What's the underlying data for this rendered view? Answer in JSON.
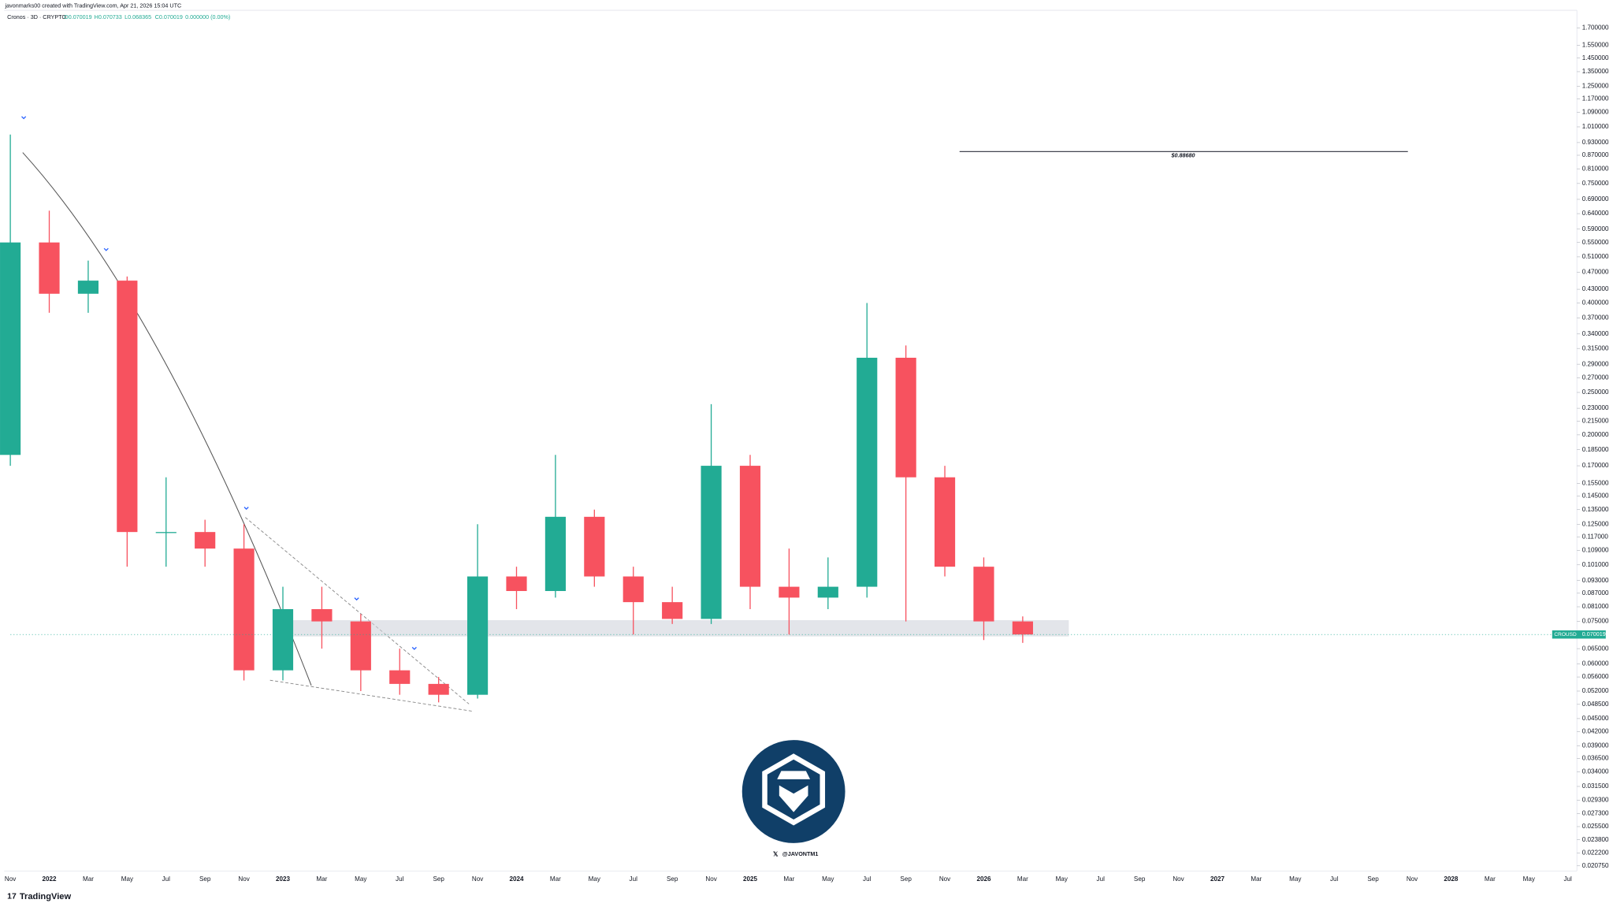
{
  "header": "javonmarks00 created with TradingView.com, Apr 21, 2026 15:04 UTC",
  "brand": "TradingView",
  "chart_data": {
    "type": "candlestick",
    "title": "Cronos · 3D · CRYPTO",
    "legend_ohlc": [
      "O0.070019",
      "H0.070733",
      "L0.068365",
      "C0.070019",
      "0.000000 (0.00%)"
    ],
    "categories": [
      "Nov",
      "2022",
      "Mar",
      "May",
      "Jul",
      "Sep",
      "Nov",
      "2023",
      "Mar",
      "May",
      "Jul",
      "Sep",
      "Nov",
      "2024",
      "Mar",
      "May",
      "Jul",
      "Sep",
      "Nov",
      "2025",
      "Mar",
      "May",
      "Jul",
      "Sep",
      "Nov",
      "2026",
      "Mar",
      "May",
      "Jul",
      "Sep",
      "Nov",
      "2027",
      "Mar",
      "May",
      "Jul",
      "Sep",
      "Nov",
      "2028",
      "Mar",
      "May",
      "Jul"
    ],
    "series": [
      {
        "name": "CROUSD",
        "up_color": "#22ab94",
        "down_color": "#f7525f",
        "open": [
          0.18,
          0.55,
          0.42,
          0.45,
          0.12,
          0.12,
          0.11,
          0.058,
          0.08,
          0.075,
          0.058,
          0.054,
          0.051,
          0.095,
          0.088,
          0.13,
          0.095,
          0.083,
          0.076,
          0.17,
          0.09,
          0.085,
          0.09,
          0.3,
          0.16,
          0.1,
          0.075
        ],
        "high": [
          0.97,
          0.65,
          0.5,
          0.46,
          0.16,
          0.128,
          0.125,
          0.09,
          0.09,
          0.078,
          0.065,
          0.056,
          0.125,
          0.1,
          0.18,
          0.135,
          0.1,
          0.09,
          0.235,
          0.18,
          0.11,
          0.105,
          0.4,
          0.32,
          0.17,
          0.105,
          0.077
        ],
        "low": [
          0.17,
          0.38,
          0.38,
          0.1,
          0.1,
          0.1,
          0.055,
          0.055,
          0.065,
          0.052,
          0.051,
          0.049,
          0.05,
          0.08,
          0.085,
          0.09,
          0.07,
          0.074,
          0.074,
          0.08,
          0.07,
          0.08,
          0.085,
          0.075,
          0.095,
          0.068,
          0.067
        ],
        "close": [
          0.55,
          0.42,
          0.45,
          0.12,
          0.12,
          0.11,
          0.058,
          0.08,
          0.075,
          0.058,
          0.054,
          0.051,
          0.095,
          0.088,
          0.13,
          0.095,
          0.083,
          0.076,
          0.17,
          0.09,
          0.085,
          0.09,
          0.3,
          0.16,
          0.1,
          0.075,
          0.070019
        ]
      }
    ],
    "last_price": {
      "value": 0.070019,
      "label": "0.070019"
    },
    "target": {
      "value": 0.8868,
      "label": "$0.88680"
    },
    "support_zone": [
      0.0693,
      0.0755
    ],
    "log_scale": true,
    "ylim": [
      0.0202,
      1.864
    ],
    "yticks": [
      {
        "value": 1.7,
        "label": "1.700000"
      },
      {
        "value": 1.55,
        "label": "1.550000"
      },
      {
        "value": 1.45,
        "label": "1.450000"
      },
      {
        "value": 1.35,
        "label": "1.350000"
      },
      {
        "value": 1.25,
        "label": "1.250000"
      },
      {
        "value": 1.17,
        "label": "1.170000"
      },
      {
        "value": 1.09,
        "label": "1.090000"
      },
      {
        "value": 1.01,
        "label": "1.010000"
      },
      {
        "value": 0.93,
        "label": "0.930000"
      },
      {
        "value": 0.87,
        "label": "0.870000"
      },
      {
        "value": 0.81,
        "label": "0.810000"
      },
      {
        "value": 0.75,
        "label": "0.750000"
      },
      {
        "value": 0.69,
        "label": "0.690000"
      },
      {
        "value": 0.64,
        "label": "0.640000"
      },
      {
        "value": 0.59,
        "label": "0.590000"
      },
      {
        "value": 0.55,
        "label": "0.550000"
      },
      {
        "value": 0.51,
        "label": "0.510000"
      },
      {
        "value": 0.47,
        "label": "0.470000"
      },
      {
        "value": 0.43,
        "label": "0.430000"
      },
      {
        "value": 0.4,
        "label": "0.400000"
      },
      {
        "value": 0.37,
        "label": "0.370000"
      },
      {
        "value": 0.34,
        "label": "0.340000"
      },
      {
        "value": 0.315,
        "label": "0.315000"
      },
      {
        "value": 0.29,
        "label": "0.290000"
      },
      {
        "value": 0.27,
        "label": "0.270000"
      },
      {
        "value": 0.25,
        "label": "0.250000"
      },
      {
        "value": 0.23,
        "label": "0.230000"
      },
      {
        "value": 0.215,
        "label": "0.215000"
      },
      {
        "value": 0.2,
        "label": "0.200000"
      },
      {
        "value": 0.185,
        "label": "0.185000"
      },
      {
        "value": 0.17,
        "label": "0.170000"
      },
      {
        "value": 0.155,
        "label": "0.155000"
      },
      {
        "value": 0.145,
        "label": "0.145000"
      },
      {
        "value": 0.135,
        "label": "0.135000"
      },
      {
        "value": 0.125,
        "label": "0.125000"
      },
      {
        "value": 0.117,
        "label": "0.117000"
      },
      {
        "value": 0.109,
        "label": "0.109000"
      },
      {
        "value": 0.101,
        "label": "0.101000"
      },
      {
        "value": 0.093,
        "label": "0.093000"
      },
      {
        "value": 0.087,
        "label": "0.087000"
      },
      {
        "value": 0.081,
        "label": "0.081000"
      },
      {
        "value": 0.075,
        "label": "0.075000"
      },
      {
        "value": 0.065,
        "label": "0.065000"
      },
      {
        "value": 0.06,
        "label": "0.060000"
      },
      {
        "value": 0.056,
        "label": "0.056000"
      },
      {
        "value": 0.052,
        "label": "0.052000"
      },
      {
        "value": 0.0485,
        "label": "0.048500"
      },
      {
        "value": 0.045,
        "label": "0.045000"
      },
      {
        "value": 0.042,
        "label": "0.042000"
      },
      {
        "value": 0.039,
        "label": "0.039000"
      },
      {
        "value": 0.0365,
        "label": "0.036500"
      },
      {
        "value": 0.034,
        "label": "0.034000"
      },
      {
        "value": 0.0315,
        "label": "0.031500"
      },
      {
        "value": 0.0293,
        "label": "0.029300"
      },
      {
        "value": 0.0273,
        "label": "0.027300"
      },
      {
        "value": 0.0255,
        "label": "0.025500"
      },
      {
        "value": 0.0238,
        "label": "0.023800"
      },
      {
        "value": 0.0222,
        "label": "0.022200"
      },
      {
        "value": 0.02075,
        "label": "0.020750"
      }
    ],
    "watermark": "@JAVONTM1"
  }
}
